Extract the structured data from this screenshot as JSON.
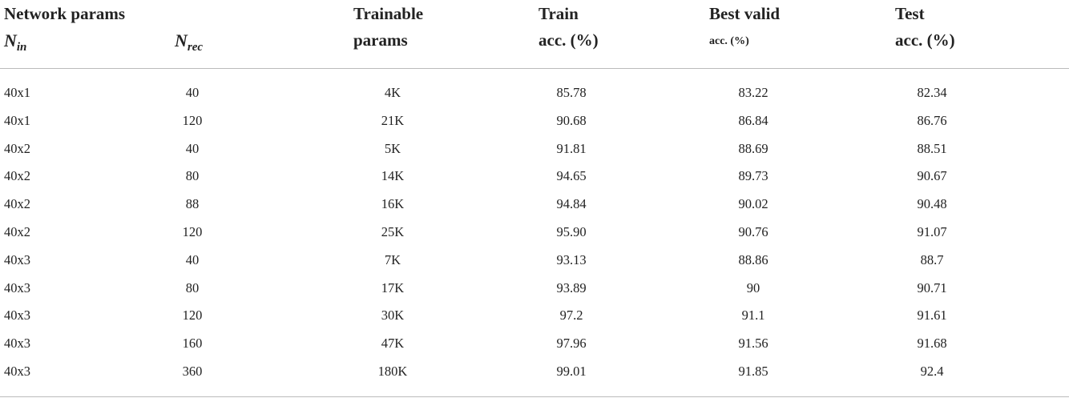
{
  "header": {
    "group": "Network params",
    "n_in": {
      "symbol": "N",
      "subscript": "in"
    },
    "n_rec": {
      "symbol": "N",
      "subscript": "rec"
    },
    "trainable": [
      "Trainable",
      "params"
    ],
    "train": [
      "Train",
      "acc. (%)"
    ],
    "best_valid": [
      "Best valid",
      "acc. (%)"
    ],
    "test": [
      "Test",
      "acc. (%)"
    ]
  },
  "table": {
    "rows": [
      [
        "40x1",
        "40",
        "4K",
        "85.78",
        "83.22",
        "82.34"
      ],
      [
        "40x1",
        "120",
        "21K",
        "90.68",
        "86.84",
        "86.76"
      ],
      [
        "40x2",
        "40",
        "5K",
        "91.81",
        "88.69",
        "88.51"
      ],
      [
        "40x2",
        "80",
        "14K",
        "94.65",
        "89.73",
        "90.67"
      ],
      [
        "40x2",
        "88",
        "16K",
        "94.84",
        "90.02",
        "90.48"
      ],
      [
        "40x2",
        "120",
        "25K",
        "95.90",
        "90.76",
        "91.07"
      ],
      [
        "40x3",
        "40",
        "7K",
        "93.13",
        "88.86",
        "88.7"
      ],
      [
        "40x3",
        "80",
        "17K",
        "93.89",
        "90",
        "90.71"
      ],
      [
        "40x3",
        "120",
        "30K",
        "97.2",
        "91.1",
        "91.61"
      ],
      [
        "40x3",
        "160",
        "47K",
        "97.96",
        "91.56",
        "91.68"
      ],
      [
        "40x3",
        "360",
        "180K",
        "99.01",
        "91.85",
        "92.4"
      ]
    ]
  }
}
